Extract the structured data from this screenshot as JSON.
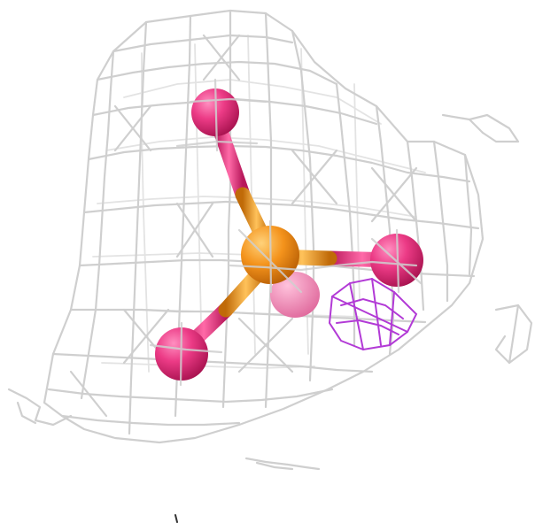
{
  "scene": {
    "description_type": "electron density mesh with ligand",
    "colors": {
      "mesh": "#cfcfcf",
      "central_atom": "#f28c18",
      "bonded_atoms": "#e8337e",
      "difference_density": "#b23ad6",
      "background": "#ffffff"
    }
  }
}
